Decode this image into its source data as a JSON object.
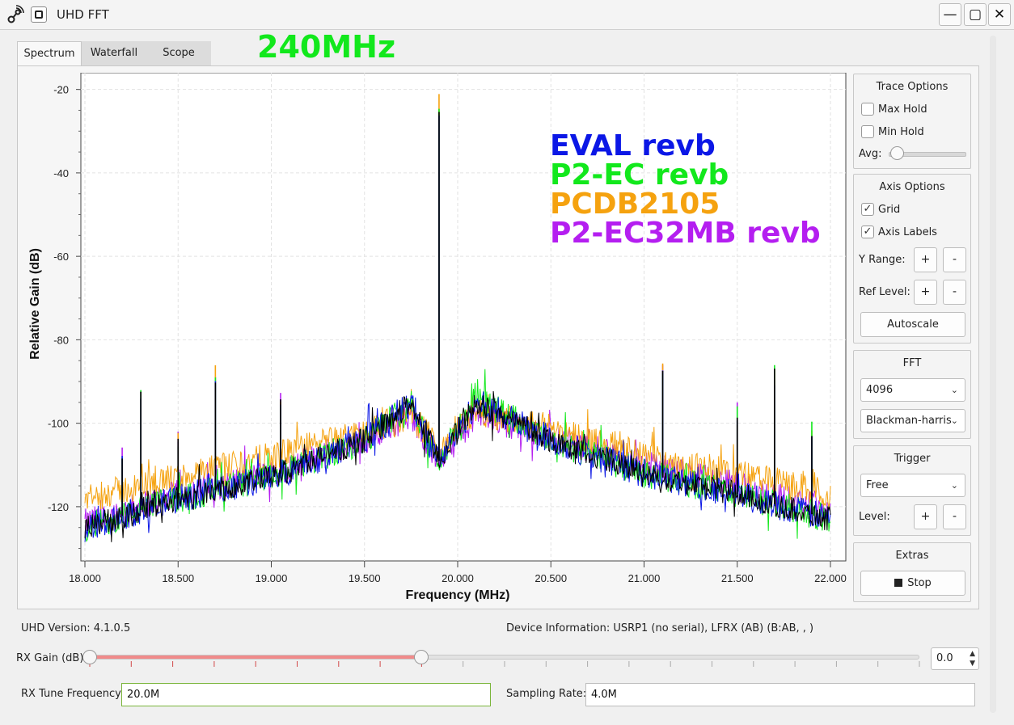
{
  "window": {
    "title": "UHD FFT"
  },
  "tabs": [
    {
      "label": "Spectrum",
      "active": true
    },
    {
      "label": "Waterfall",
      "active": false
    },
    {
      "label": "Scope",
      "active": false
    }
  ],
  "overlay_label": "240MHz",
  "legend": [
    {
      "label": "EVAL revb",
      "color": "#0b17e6"
    },
    {
      "label": "P2-EC revb",
      "color": "#12e81c"
    },
    {
      "label": "PCDB2105",
      "color": "#f5a20f"
    },
    {
      "label": "P2-EC32MB revb",
      "color": "#b41ef0"
    }
  ],
  "chart_data": {
    "type": "line",
    "xlabel": "Frequency (MHz)",
    "ylabel": "Relative Gain (dB)",
    "xlim": [
      18.0,
      22.0
    ],
    "ylim": [
      -133,
      -16
    ],
    "xticks": [
      "18.000",
      "18.500",
      "19.000",
      "19.500",
      "20.000",
      "20.500",
      "21.000",
      "21.500",
      "22.000"
    ],
    "yticks": [
      "-20",
      "-40",
      "-60",
      "-80",
      "-100",
      "-120"
    ],
    "grid": true,
    "series": [
      {
        "name": "P2-EC32MB revb",
        "color": "#b41ef0",
        "noise_floor": [
          [
            18.0,
            -124
          ],
          [
            18.5,
            -117
          ],
          [
            19.0,
            -112
          ],
          [
            19.5,
            -104
          ],
          [
            19.75,
            -98
          ],
          [
            19.9,
            -109
          ],
          [
            20.1,
            -98
          ],
          [
            20.5,
            -103
          ],
          [
            21.0,
            -110
          ],
          [
            21.5,
            -115
          ],
          [
            22.0,
            -121
          ]
        ]
      },
      {
        "name": "PCDB2105",
        "color": "#f5a20f",
        "noise_floor": [
          [
            18.0,
            -118
          ],
          [
            18.5,
            -113
          ],
          [
            19.0,
            -108
          ],
          [
            19.5,
            -102
          ],
          [
            19.75,
            -98
          ],
          [
            19.9,
            -106
          ],
          [
            20.1,
            -97
          ],
          [
            20.5,
            -101
          ],
          [
            21.0,
            -108
          ],
          [
            21.5,
            -112
          ],
          [
            22.0,
            -117
          ]
        ]
      },
      {
        "name": "P2-EC revb",
        "color": "#12e81c",
        "noise_floor": [
          [
            18.0,
            -125
          ],
          [
            18.5,
            -118
          ],
          [
            19.0,
            -113
          ],
          [
            19.5,
            -104
          ],
          [
            19.75,
            -95
          ],
          [
            19.9,
            -109
          ],
          [
            20.1,
            -94
          ],
          [
            20.5,
            -104
          ],
          [
            21.0,
            -112
          ],
          [
            21.5,
            -117
          ],
          [
            22.0,
            -123
          ]
        ]
      },
      {
        "name": "EVAL revb",
        "color": "#0b17e6",
        "noise_floor": [
          [
            18.0,
            -125
          ],
          [
            18.5,
            -118
          ],
          [
            19.0,
            -113
          ],
          [
            19.5,
            -104
          ],
          [
            19.75,
            -95
          ],
          [
            19.9,
            -109
          ],
          [
            20.1,
            -95
          ],
          [
            20.5,
            -104
          ],
          [
            21.0,
            -112
          ],
          [
            21.5,
            -117
          ],
          [
            22.0,
            -123
          ]
        ]
      }
    ],
    "spurs": [
      {
        "x": 19.9,
        "peak": -24
      },
      {
        "x": 18.3,
        "peak": -92
      },
      {
        "x": 18.7,
        "peak": -89
      },
      {
        "x": 21.1,
        "peak": -87
      },
      {
        "x": 21.7,
        "peak": -88
      },
      {
        "x": 19.05,
        "peak": -95
      },
      {
        "x": 21.5,
        "peak": -98
      },
      {
        "x": 21.9,
        "peak": -102
      },
      {
        "x": 18.2,
        "peak": -108
      },
      {
        "x": 18.5,
        "peak": -104
      }
    ],
    "top_trace_color": "#000000"
  },
  "trace_options": {
    "title": "Trace Options",
    "max_hold_label": "Max Hold",
    "max_hold_checked": false,
    "min_hold_label": "Min Hold",
    "min_hold_checked": false,
    "avg_label": "Avg:",
    "avg_level": 0.05
  },
  "axis_options": {
    "title": "Axis Options",
    "grid_label": "Grid",
    "grid_checked": "✓",
    "axis_labels_label": "Axis Labels",
    "axis_labels_checked": "✓",
    "y_range_label": "Y Range:",
    "ref_level_label": "Ref Level:",
    "plus": "+",
    "minus": "-",
    "autoscale_label": "Autoscale"
  },
  "fft": {
    "title": "FFT",
    "size": "4096",
    "window": "Blackman-harris"
  },
  "trigger": {
    "title": "Trigger",
    "mode": "Free",
    "level_label": "Level:",
    "plus": "+",
    "minus": "-"
  },
  "extras": {
    "title": "Extras",
    "stop_label": "Stop"
  },
  "status": {
    "uhd_version": "UHD Version: 4.1.0.5",
    "device_info": "Device Information: USRP1 (no serial), LFRX (AB) (B:AB, , )"
  },
  "rx_gain": {
    "label": "RX Gain (dB)",
    "value": "0.0",
    "slider_fraction": 0.4
  },
  "rx_tune": {
    "label": "RX Tune Frequency:",
    "value": "20.0M"
  },
  "sampling": {
    "label": "Sampling Rate:",
    "value": "4.0M"
  }
}
